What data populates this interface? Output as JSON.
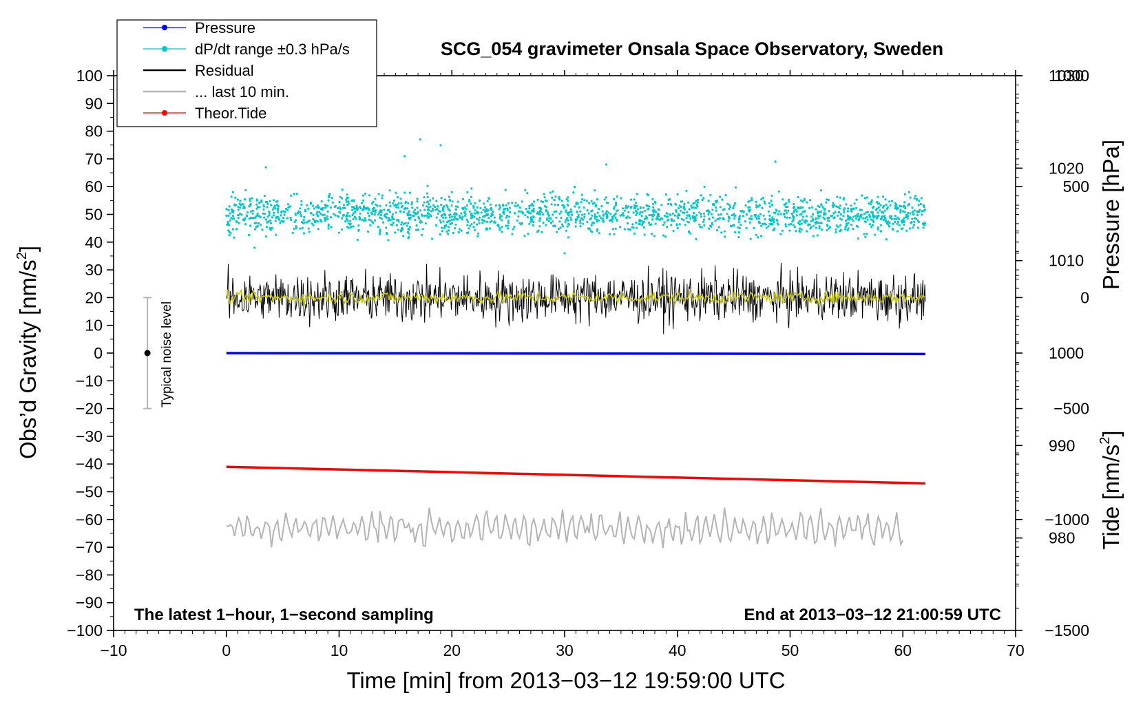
{
  "chart_data": {
    "type": "scatter",
    "title": "SCG_054 gravimeter Onsala Space Observatory, Sweden",
    "xlabel": "Time [min] from 2013−03−12 19:59:00 UTC",
    "ylabel": "Obs’d Gravity [nm/s",
    "ylabel_sup": "2",
    "ylabel_close": "]",
    "y2label_pressure": "Pressure [hPa]",
    "y2label_tide": "Tide [nm/s",
    "y2label_tide_sup": "2",
    "y2label_tide_close": "]",
    "xlim": [
      -10,
      70
    ],
    "ylim": [
      -100,
      100
    ],
    "pressure_lim": [
      970,
      1030
    ],
    "tide_lim": [
      -1500,
      1000
    ],
    "x_ticks": [
      "−10",
      "0",
      "10",
      "20",
      "30",
      "40",
      "50",
      "60",
      "70"
    ],
    "y_ticks": [
      "−100",
      "−90",
      "−80",
      "−70",
      "−60",
      "−50",
      "−40",
      "−30",
      "−20",
      "−10",
      "0",
      "10",
      "20",
      "30",
      "40",
      "50",
      "60",
      "70",
      "80",
      "90",
      "100"
    ],
    "pressure_ticks": [
      "980",
      "990",
      "1000",
      "1010",
      "1020",
      "1030"
    ],
    "tide_ticks": [
      "−1500",
      "−1000",
      "−500",
      "0",
      "500",
      "1000"
    ],
    "legend_placement": "top-left",
    "legend": [
      {
        "label": "Pressure",
        "style": "line-dot",
        "color": "#0000ff"
      },
      {
        "label": "dP/dt range ±0.3 hPa/s",
        "style": "line-dot",
        "color": "#00c8c8"
      },
      {
        "label": "Residual",
        "style": "line",
        "color": "#000000"
      },
      {
        "label": "... last 10 min.",
        "style": "line",
        "color": "#b4b4b4"
      },
      {
        "label": "Theor.Tide",
        "style": "line-dot",
        "color": "#ff0000"
      }
    ],
    "series": [
      {
        "name": "Pressure",
        "color": "#0000ff",
        "x": [
          0,
          62
        ],
        "pressure": [
          1000,
          999.9
        ]
      },
      {
        "name": "dP/dt range ±0.3 hPa/s",
        "color": "#00c8c8",
        "x_range": [
          0,
          62
        ],
        "center": 50,
        "spread": 5,
        "outliers": [
          [
            3.5,
            67
          ],
          [
            15.8,
            71
          ],
          [
            17.2,
            77
          ],
          [
            19,
            75
          ],
          [
            33.7,
            68
          ],
          [
            48.7,
            69
          ],
          [
            2.5,
            38
          ],
          [
            30,
            36
          ]
        ]
      },
      {
        "name": "Residual",
        "color": "#000000",
        "x_range": [
          0,
          62
        ],
        "center": 20,
        "spread": 12
      },
      {
        "name": "Residual smoothed",
        "color": "#c8c800",
        "x_range": [
          0,
          62
        ],
        "center": 20,
        "spread": 3
      },
      {
        "name": "... last 10 min.",
        "color": "#b4b4b4",
        "x_range": [
          0,
          60
        ],
        "center": -63,
        "spread": 10
      },
      {
        "name": "Theor.Tide",
        "color": "#ff0000",
        "x": [
          0,
          62
        ],
        "y": [
          -41,
          -47
        ]
      }
    ],
    "noise_level": {
      "label": "Typical noise level",
      "x": -7,
      "center": 0,
      "range": [
        -20,
        20
      ]
    },
    "annotations": {
      "left": "The latest 1−hour, 1−second sampling",
      "right": "End at 2013−03−12 21:00:59 UTC"
    },
    "grid": false
  }
}
